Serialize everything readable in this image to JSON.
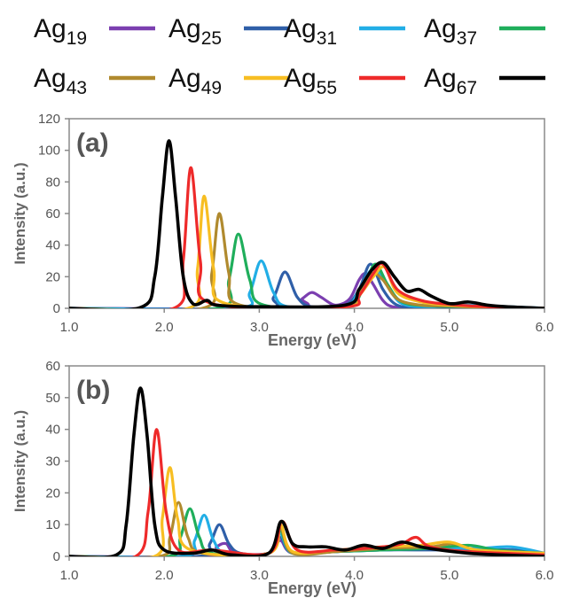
{
  "legend": {
    "entries": [
      {
        "base": "Ag",
        "sub": "19",
        "color": "#7B3FB0"
      },
      {
        "base": "Ag",
        "sub": "25",
        "color": "#2F5FA8"
      },
      {
        "base": "Ag",
        "sub": "31",
        "color": "#22AEE6"
      },
      {
        "base": "Ag",
        "sub": "37",
        "color": "#1FAE5B"
      },
      {
        "base": "Ag",
        "sub": "43",
        "color": "#B08A2E"
      },
      {
        "base": "Ag",
        "sub": "49",
        "color": "#F7BE22"
      },
      {
        "base": "Ag",
        "sub": "55",
        "color": "#EE2A2A"
      },
      {
        "base": "Ag",
        "sub": "67",
        "color": "#000000"
      }
    ]
  },
  "chart_data": [
    {
      "type": "line",
      "panel_label": "(a)",
      "xlabel": "Energy (eV)",
      "ylabel": "Intensity (a.u.)",
      "xlim": [
        1.0,
        6.0
      ],
      "ylim": [
        0,
        120
      ],
      "xticks": [
        "1.0",
        "2.0",
        "3.0",
        "4.0",
        "5.0",
        "6.0"
      ],
      "yticks": [
        "0",
        "20",
        "40",
        "60",
        "80",
        "100",
        "120"
      ],
      "grid": false,
      "series": [
        {
          "name": "Ag19",
          "color": "#7B3FB0",
          "x": [
            1.0,
            3.3,
            3.45,
            3.55,
            3.65,
            3.8,
            3.95,
            4.05,
            4.12,
            4.2,
            4.3,
            4.4,
            4.6,
            5.0,
            6.0
          ],
          "y": [
            0,
            0,
            6,
            10,
            7,
            2,
            6,
            18,
            22,
            15,
            5,
            1,
            0.5,
            0,
            0
          ]
        },
        {
          "name": "Ag25",
          "color": "#2F5FA8",
          "x": [
            1.0,
            3.0,
            3.15,
            3.27,
            3.4,
            3.55,
            3.9,
            4.05,
            4.17,
            4.3,
            4.45,
            4.7,
            5.2,
            6.0
          ],
          "y": [
            0,
            0,
            7,
            23,
            7,
            1,
            2,
            12,
            28,
            12,
            2,
            0.5,
            0.5,
            0
          ],
          "shape": "smooth"
        },
        {
          "name": "Ag31",
          "color": "#22AEE6",
          "x": [
            1.0,
            2.75,
            2.9,
            3.02,
            3.15,
            3.3,
            3.9,
            4.05,
            4.2,
            4.35,
            4.5,
            4.8,
            5.2,
            6.0
          ],
          "y": [
            0,
            0,
            10,
            30,
            10,
            1,
            1,
            12,
            25,
            14,
            3,
            1,
            2,
            0
          ]
        },
        {
          "name": "Ag37",
          "color": "#1FAE5B",
          "x": [
            1.0,
            2.55,
            2.68,
            2.78,
            2.9,
            3.05,
            3.9,
            4.1,
            4.22,
            4.35,
            4.5,
            4.8,
            5.2,
            5.5,
            6.0
          ],
          "y": [
            0,
            0,
            18,
            47,
            18,
            2,
            1,
            14,
            28,
            15,
            4,
            1.5,
            1,
            0.5,
            0
          ]
        },
        {
          "name": "Ag43",
          "color": "#B08A2E",
          "x": [
            1.0,
            2.4,
            2.5,
            2.58,
            2.68,
            2.8,
            3.9,
            4.05,
            4.18,
            4.3,
            4.45,
            4.7,
            5.0,
            5.4,
            6.0
          ],
          "y": [
            0,
            0,
            22,
            60,
            22,
            2,
            1,
            10,
            22,
            18,
            6,
            2,
            1.5,
            0.5,
            0
          ]
        },
        {
          "name": "Ag49",
          "color": "#F7BE22",
          "x": [
            1.0,
            2.25,
            2.35,
            2.42,
            2.52,
            2.65,
            3.9,
            4.05,
            4.2,
            4.32,
            4.45,
            4.7,
            5.0,
            5.4,
            6.0
          ],
          "y": [
            0,
            0,
            25,
            71,
            25,
            3,
            1,
            8,
            20,
            26,
            10,
            4,
            2,
            1,
            0
          ]
        },
        {
          "name": "Ag55",
          "color": "#EE2A2A",
          "x": [
            1.0,
            2.1,
            2.2,
            2.28,
            2.38,
            2.5,
            3.9,
            4.05,
            4.2,
            4.3,
            4.45,
            4.7,
            5.0,
            5.4,
            6.0
          ],
          "y": [
            0,
            0,
            30,
            89,
            30,
            3,
            1,
            8,
            22,
            28,
            12,
            5,
            2.5,
            1,
            0
          ]
        },
        {
          "name": "Ag67",
          "color": "#000000",
          "x": [
            1.0,
            1.75,
            1.9,
            1.98,
            2.05,
            2.12,
            2.2,
            2.3,
            2.45,
            2.55,
            3.0,
            3.9,
            4.05,
            4.18,
            4.3,
            4.42,
            4.55,
            4.68,
            4.8,
            5.0,
            5.2,
            5.4,
            5.6,
            6.0
          ],
          "y": [
            0,
            0.5,
            20,
            70,
            106,
            70,
            20,
            3,
            5,
            2,
            1,
            2,
            12,
            24,
            29,
            20,
            11,
            12,
            8,
            3,
            4,
            2,
            1,
            0
          ]
        }
      ]
    },
    {
      "type": "line",
      "panel_label": "(b)",
      "xlabel": "Energy (eV)",
      "ylabel": "Intensity (a.u.)",
      "xlim": [
        1.0,
        6.0
      ],
      "ylim": [
        0,
        60
      ],
      "xticks": [
        "1.0",
        "2.0",
        "3.0",
        "4.0",
        "5.0",
        "6.0"
      ],
      "yticks": [
        "0",
        "10",
        "20",
        "30",
        "40",
        "50",
        "60"
      ],
      "grid": false,
      "series": [
        {
          "name": "Ag19",
          "color": "#7B3FB0",
          "x": [
            1.0,
            2.45,
            2.55,
            2.65,
            2.75,
            3.1,
            3.22,
            3.35,
            3.8,
            4.3,
            4.8,
            5.3,
            5.6,
            6.0
          ],
          "y": [
            0,
            0,
            3,
            4,
            1,
            1,
            5,
            1,
            1.5,
            2,
            2.5,
            2,
            1.5,
            1
          ]
        },
        {
          "name": "Ag25",
          "color": "#2F5FA8",
          "x": [
            1.0,
            2.35,
            2.48,
            2.58,
            2.68,
            2.8,
            3.1,
            3.22,
            3.35,
            3.8,
            4.3,
            4.8,
            5.3,
            5.7,
            6.0
          ],
          "y": [
            0,
            0,
            4,
            10,
            4,
            1,
            1,
            6,
            1,
            1.5,
            2,
            2,
            2,
            2,
            1
          ]
        },
        {
          "name": "Ag31",
          "color": "#22AEE6",
          "x": [
            1.0,
            2.2,
            2.32,
            2.42,
            2.52,
            2.65,
            3.1,
            3.22,
            3.35,
            3.8,
            4.3,
            4.8,
            5.3,
            5.65,
            6.0
          ],
          "y": [
            0,
            0,
            5,
            13,
            5,
            1,
            1,
            7,
            1,
            1.5,
            2,
            2.5,
            2.5,
            3,
            1
          ]
        },
        {
          "name": "Ag37",
          "color": "#1FAE5B",
          "x": [
            1.0,
            2.05,
            2.17,
            2.27,
            2.37,
            2.5,
            3.1,
            3.22,
            3.35,
            3.8,
            4.3,
            4.8,
            5.2,
            5.5,
            6.0
          ],
          "y": [
            0,
            0,
            6,
            15,
            6,
            1,
            1,
            8,
            1,
            1.5,
            2,
            2.5,
            3.5,
            2,
            1
          ]
        },
        {
          "name": "Ag43",
          "color": "#B08A2E",
          "x": [
            1.0,
            1.95,
            2.06,
            2.15,
            2.25,
            2.4,
            3.1,
            3.22,
            3.35,
            3.8,
            4.3,
            4.8,
            5.05,
            5.3,
            6.0
          ],
          "y": [
            0,
            0,
            6,
            17,
            6,
            1,
            1,
            9,
            1,
            1.5,
            2.5,
            3,
            4,
            2,
            1
          ]
        },
        {
          "name": "Ag49",
          "color": "#F7BE22",
          "x": [
            1.0,
            1.9,
            1.98,
            2.06,
            2.14,
            2.28,
            3.1,
            3.22,
            3.35,
            3.8,
            4.3,
            4.7,
            5.0,
            5.3,
            6.0
          ],
          "y": [
            0,
            0,
            12,
            28,
            12,
            2,
            1,
            10,
            1.5,
            2,
            3,
            3.5,
            4.5,
            2,
            1
          ]
        },
        {
          "name": "Ag55",
          "color": "#EE2A2A",
          "x": [
            1.0,
            1.7,
            1.83,
            1.92,
            2.02,
            2.15,
            2.5,
            3.1,
            3.24,
            3.4,
            3.8,
            4.3,
            4.5,
            4.65,
            4.8,
            5.2,
            6.0
          ],
          "y": [
            0,
            0,
            14,
            40,
            14,
            2,
            2,
            1,
            11,
            2,
            2,
            3,
            4,
            6,
            3,
            1.5,
            0.5
          ]
        },
        {
          "name": "Ag67",
          "color": "#000000",
          "x": [
            1.0,
            1.5,
            1.6,
            1.68,
            1.75,
            1.82,
            1.9,
            2.0,
            2.3,
            2.5,
            2.7,
            3.1,
            3.23,
            3.35,
            3.5,
            3.7,
            3.9,
            4.1,
            4.3,
            4.5,
            4.7,
            4.9,
            5.2,
            5.5,
            6.0
          ],
          "y": [
            0,
            0.5,
            10,
            38,
            53,
            38,
            10,
            2,
            1,
            2,
            0.5,
            1,
            11,
            4,
            3,
            3,
            2,
            3.5,
            2.5,
            4.5,
            3,
            2,
            1,
            0.5,
            0
          ]
        }
      ]
    }
  ]
}
